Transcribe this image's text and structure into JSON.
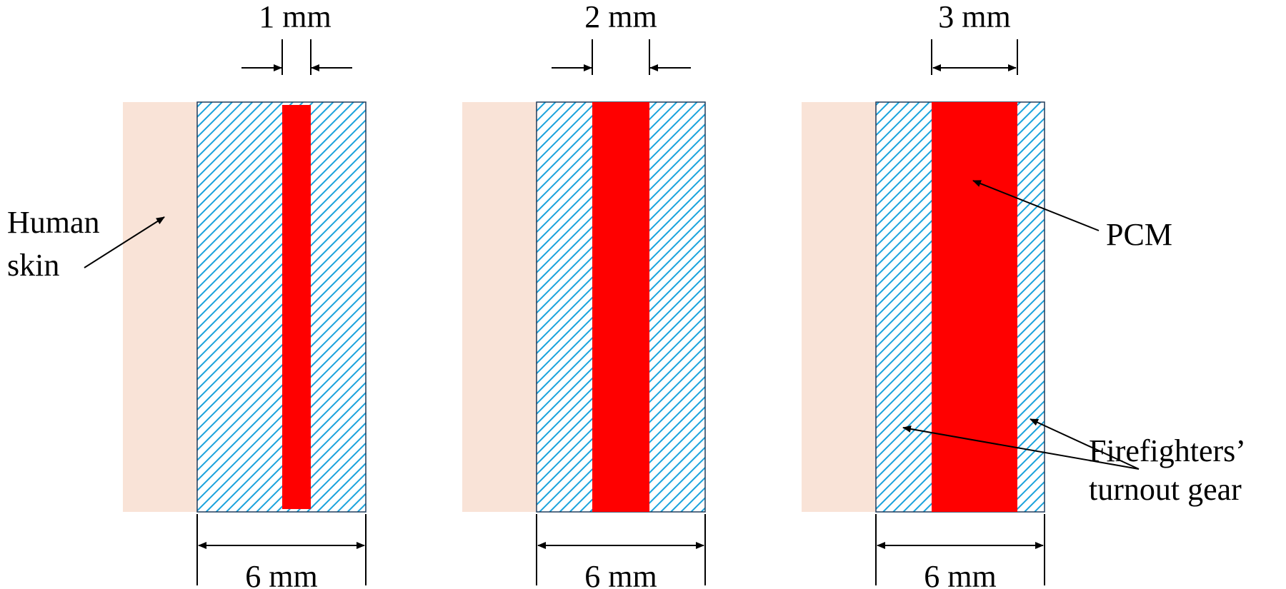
{
  "panels": [
    {
      "pcm_thickness": "1 mm",
      "gear_thickness": "6 mm"
    },
    {
      "pcm_thickness": "2 mm",
      "gear_thickness": "6 mm"
    },
    {
      "pcm_thickness": "3 mm",
      "gear_thickness": "6 mm"
    }
  ],
  "labels": {
    "skin_line1": "Human",
    "skin_line2": "skin",
    "pcm": "PCM",
    "gear_line1": "Firefighters’",
    "gear_line2": "turnout gear"
  },
  "colors": {
    "skin": "#f9e3d7",
    "hatch": "#1ba3dc",
    "pcm": "#ff0000",
    "outline": "#1f3b5a"
  }
}
